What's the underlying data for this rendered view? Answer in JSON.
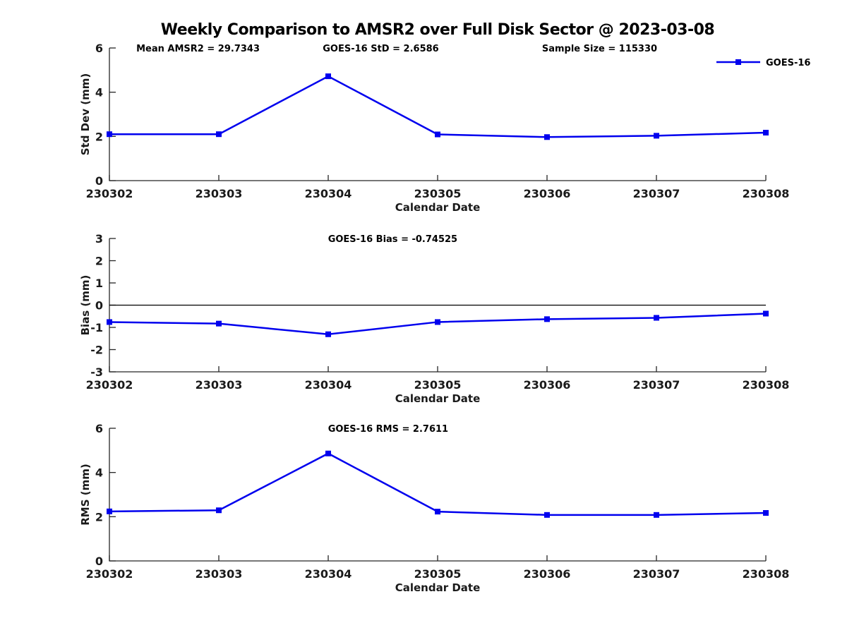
{
  "title": "Weekly Comparison to AMSR2 over Full Disk Sector @ 2023-03-08",
  "style": {
    "line_color": "#0000EE",
    "axis_color": "#262626",
    "text_color": "#1a1a1a",
    "zero_line_color": "#000000",
    "marker": "square"
  },
  "stats": {
    "mean_amsr2": 29.7343,
    "goes16_std": 2.6586,
    "sample_size": 115330,
    "goes16_bias": -0.74525,
    "goes16_rms": 2.7611
  },
  "chart_data": [
    {
      "type": "line",
      "id": "std-dev",
      "ylabel": "Std Dev (mm)",
      "xlabel": "Calendar Date",
      "ylim": [
        0,
        6
      ],
      "yticks": [
        0,
        2,
        4,
        6
      ],
      "grid": false,
      "categories": [
        "230302",
        "230303",
        "230304",
        "230305",
        "230306",
        "230307",
        "230308"
      ],
      "series": [
        {
          "name": "GOES-16",
          "values": [
            2.1,
            2.1,
            4.72,
            2.09,
            1.97,
            2.03,
            2.17
          ]
        }
      ],
      "legend": {
        "position": "top-right",
        "label": "GOES-16"
      },
      "annotations": [
        {
          "text": "Mean AMSR2 = 29.7343",
          "x": 0.041
        },
        {
          "text": "GOES-16 StD = 2.6586",
          "x": 0.325
        },
        {
          "text": "Sample Size = 115330",
          "x": 0.659
        }
      ]
    },
    {
      "type": "line",
      "id": "bias",
      "ylabel": "Bias (mm)",
      "xlabel": "Calendar Date",
      "ylim": [
        -3,
        3
      ],
      "yticks": [
        3,
        2,
        1,
        0,
        -1,
        -2,
        -3
      ],
      "zero_line": true,
      "grid": false,
      "categories": [
        "230302",
        "230303",
        "230304",
        "230305",
        "230306",
        "230307",
        "230308"
      ],
      "series": [
        {
          "name": "GOES-16",
          "values": [
            -0.76,
            -0.83,
            -1.31,
            -0.76,
            -0.63,
            -0.57,
            -0.38
          ]
        }
      ],
      "annotations": [
        {
          "text": "GOES-16 Bias  = -0.74525",
          "x": 0.333
        }
      ]
    },
    {
      "type": "line",
      "id": "rms",
      "ylabel": "RMS (mm)",
      "xlabel": "Calendar Date",
      "ylim": [
        0,
        6
      ],
      "yticks": [
        0,
        2,
        4,
        6
      ],
      "grid": false,
      "categories": [
        "230302",
        "230303",
        "230304",
        "230305",
        "230306",
        "230307",
        "230308"
      ],
      "series": [
        {
          "name": "GOES-16",
          "values": [
            2.24,
            2.29,
            4.86,
            2.23,
            2.08,
            2.08,
            2.17
          ]
        }
      ],
      "annotations": [
        {
          "text": "GOES-16 RMS = 2.7611",
          "x": 0.333
        }
      ]
    }
  ]
}
